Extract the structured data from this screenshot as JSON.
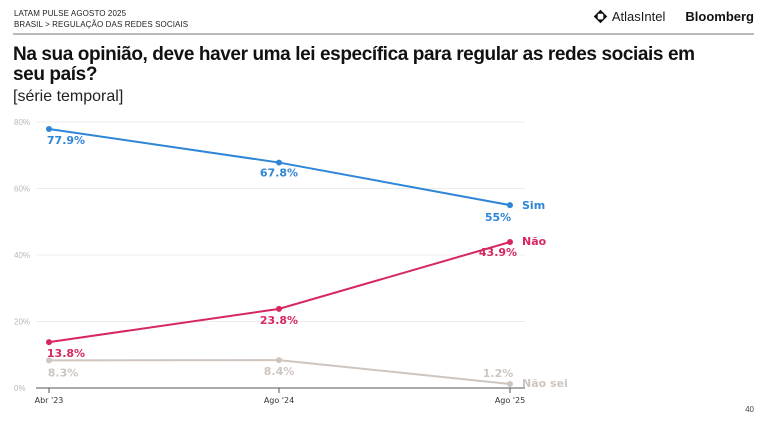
{
  "header": {
    "line1": "LATAM PULSE AGOSTO 2025",
    "line2": "BRASIL > REGULAÇÃO DAS REDES SOCIAIS",
    "brand_atlas": "AtlasIntel",
    "brand_bloomberg": "Bloomberg"
  },
  "page_number": "40",
  "chart_data": {
    "type": "line",
    "title": "Na sua opinião, deve haver uma lei específica para regular as redes sociais em seu país?",
    "subtitle": "[série temporal]",
    "xlabel": "",
    "ylabel": "",
    "x": [
      "Abr '23",
      "Ago '24",
      "Ago '25"
    ],
    "ylim": [
      0,
      80
    ],
    "yticks": [
      0,
      20,
      40,
      60,
      80
    ],
    "ytick_labels": [
      "0%",
      "20%",
      "40%",
      "60%",
      "80%"
    ],
    "grid": true,
    "legend": "inline-right",
    "series": [
      {
        "name": "Sim",
        "values": [
          77.9,
          67.8,
          55.0
        ],
        "labels": [
          "77.9%",
          "67.8%",
          "55%"
        ],
        "color": "#2f86d6"
      },
      {
        "name": "Não",
        "values": [
          13.8,
          23.8,
          43.9
        ],
        "labels": [
          "13.8%",
          "23.8%",
          "43.9%"
        ],
        "color": "#d6275f"
      },
      {
        "name": "Não sei",
        "values": [
          8.3,
          8.4,
          1.2
        ],
        "labels": [
          "8.3%",
          "8.4%",
          "1.2%"
        ],
        "color": "#cfc5bf"
      }
    ]
  }
}
